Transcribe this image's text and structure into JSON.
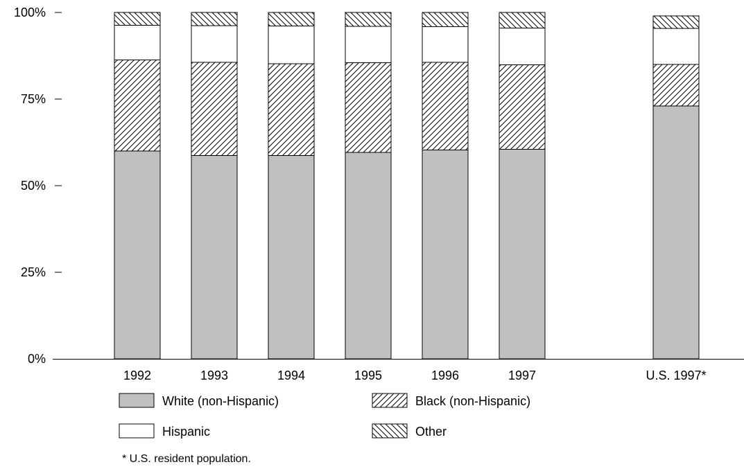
{
  "chart_data": {
    "type": "bar",
    "stacked": true,
    "title": "",
    "xlabel": "",
    "ylabel": "",
    "ylim": [
      0,
      100
    ],
    "yticks": [
      "0%",
      "25%",
      "50%",
      "75%",
      "100%"
    ],
    "ytick_values": [
      0,
      25,
      50,
      75,
      100
    ],
    "categories": [
      "1992",
      "1993",
      "1994",
      "1995",
      "1996",
      "1997",
      "U.S. 1997*"
    ],
    "series": [
      {
        "name": "White (non-Hispanic)",
        "pattern": "solid-gray",
        "color": "#c0c0c0",
        "values": [
          60,
          58.7,
          58.7,
          59.6,
          60.3,
          60.5,
          73
        ]
      },
      {
        "name": "Black (non-Hispanic)",
        "pattern": "diagonal-forward",
        "color": "#000000",
        "values": [
          26.3,
          26.9,
          26.5,
          25.9,
          25.3,
          24.4,
          12
        ]
      },
      {
        "name": "Hispanic",
        "pattern": "white",
        "color": "#ffffff",
        "values": [
          10,
          10.6,
          10.9,
          10.5,
          10.3,
          10.6,
          10.4
        ]
      },
      {
        "name": "Other",
        "pattern": "diagonal-backward",
        "color": "#000000",
        "values": [
          3.7,
          3.8,
          3.9,
          4,
          4.1,
          4.5,
          3.6
        ]
      }
    ],
    "legend_position": "bottom",
    "grid": false,
    "footnote": "* U.S. resident population."
  }
}
